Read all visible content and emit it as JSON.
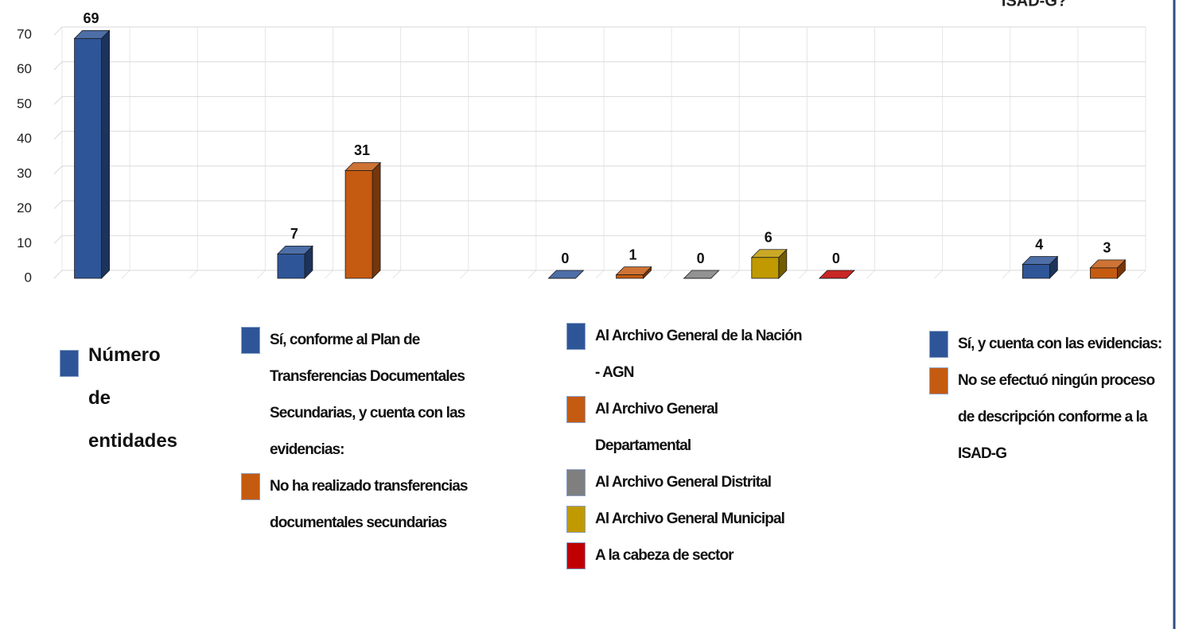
{
  "chart_data": {
    "type": "bar3d",
    "title": "ISAD-G?",
    "categories": [
      null,
      null,
      null,
      null,
      null,
      null,
      null,
      null,
      null,
      null,
      null,
      null,
      null,
      null,
      null,
      null
    ],
    "ylim": [
      0,
      70
    ],
    "yticks": [
      0,
      10,
      20,
      30,
      40,
      50,
      60,
      70
    ],
    "grid": true,
    "series": [
      {
        "name": "Número de entidades",
        "color": "#2e5597",
        "values": [
          69,
          null,
          null,
          null,
          null,
          null,
          null,
          null,
          null,
          null,
          null,
          null,
          null,
          null,
          null,
          null
        ]
      },
      {
        "name": "Sí, conforme al Plan de Transferencias Documentales Secundarias, y cuenta con las evidencias:",
        "color": "#2e5597",
        "values": [
          null,
          null,
          null,
          7,
          null,
          null,
          null,
          null,
          null,
          null,
          null,
          null,
          null,
          null,
          null,
          null
        ]
      },
      {
        "name": "No ha realizado transferencias documentales secundarias",
        "color": "#c55a11",
        "values": [
          null,
          null,
          null,
          null,
          31,
          null,
          null,
          null,
          null,
          null,
          null,
          null,
          null,
          null,
          null,
          null
        ]
      },
      {
        "name": "Al Archivo General de la Nación - AGN",
        "color": "#2e5597",
        "values": [
          null,
          null,
          null,
          null,
          null,
          null,
          null,
          0,
          null,
          null,
          null,
          null,
          null,
          null,
          null,
          null
        ]
      },
      {
        "name": "Al Archivo General Departamental",
        "color": "#c55a11",
        "values": [
          null,
          null,
          null,
          null,
          null,
          null,
          null,
          null,
          1,
          null,
          null,
          null,
          null,
          null,
          null,
          null
        ]
      },
      {
        "name": "Al Archivo General Distrital",
        "color": "#7f7f7f",
        "values": [
          null,
          null,
          null,
          null,
          null,
          null,
          null,
          null,
          null,
          0,
          null,
          null,
          null,
          null,
          null,
          null
        ]
      },
      {
        "name": "Al Archivo General Municipal",
        "color": "#c09a00",
        "values": [
          null,
          null,
          null,
          null,
          null,
          null,
          null,
          null,
          null,
          null,
          6,
          null,
          null,
          null,
          null,
          null
        ]
      },
      {
        "name": "A la cabeza de sector",
        "color": "#c00000",
        "values": [
          null,
          null,
          null,
          null,
          null,
          null,
          null,
          null,
          null,
          null,
          null,
          0,
          null,
          null,
          null,
          null
        ]
      },
      {
        "name": "Sí, y cuenta con las evidencias:",
        "color": "#2e5597",
        "values": [
          null,
          null,
          null,
          null,
          null,
          null,
          null,
          null,
          null,
          null,
          null,
          null,
          null,
          null,
          4,
          null
        ]
      },
      {
        "name": "No se efectuó ningún proceso de descripción conforme a la ISAD-G",
        "color": "#c55a11",
        "values": [
          null,
          null,
          null,
          null,
          null,
          null,
          null,
          null,
          null,
          null,
          null,
          null,
          null,
          null,
          null,
          3
        ]
      }
    ]
  }
}
